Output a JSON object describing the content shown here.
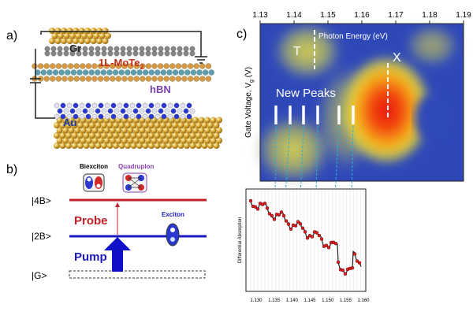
{
  "panel_a": {
    "label": "a)",
    "gr": "Gr",
    "mote_main": "1L-MoTe",
    "mote_sub": "2",
    "hbn": "hBN",
    "au": "Au"
  },
  "panel_b": {
    "label": "b)",
    "level_4b": "|4B>",
    "level_2b": "|2B>",
    "level_g": "|G>",
    "probe": "Probe",
    "pump": "Pump",
    "biexciton": "Biexciton",
    "quadruplon": "Quadruplon",
    "exciton": "Exciton"
  },
  "panel_c": {
    "label": "c)",
    "top_axis_title": "Photon Energy (eV)",
    "top_ticks": [
      "1.13",
      "1.14",
      "1.15",
      "1.16",
      "1.17",
      "1.18",
      "1.19"
    ],
    "y_title_main": "Gate Voltage, V",
    "y_title_sub": "g",
    "y_title_unit": " (V)",
    "t_label": "T",
    "x_label": "X",
    "new_peaks": "New Peaks",
    "inset_y_title": "Differential Absorption",
    "inset_ticks": [
      "1.130",
      "1.135",
      "1.140",
      "1.145",
      "1.150",
      "1.155",
      "1.160"
    ]
  }
}
